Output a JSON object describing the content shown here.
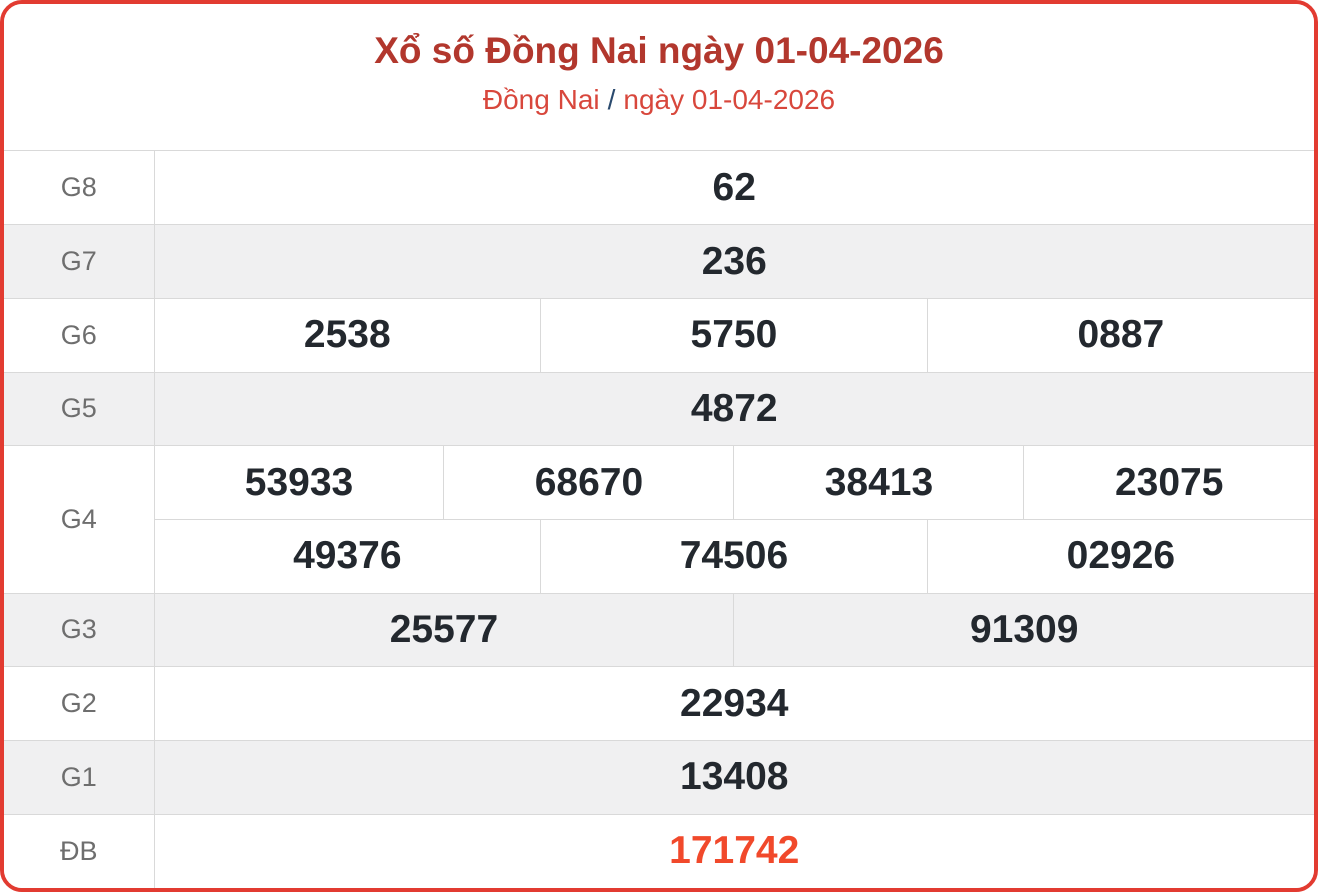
{
  "header": {
    "title": "Xổ số Đồng Nai ngày 01-04-2026",
    "region_link": "Đồng Nai",
    "separator": "/",
    "date_link": "ngày 01-04-2026"
  },
  "colors": {
    "card_border": "#e23b31",
    "title_text": "#b2372d",
    "subtitle_text": "#d8473c",
    "separator_text": "#2a4a6e",
    "number_text": "#23282e",
    "label_text": "#6e6e6e",
    "special_prize_text": "#f1492b",
    "alt_row_background": "#f0f0f1",
    "grid_line": "#d9d9d9"
  },
  "results": {
    "rows": [
      {
        "label": "G8",
        "values": [
          "62"
        ]
      },
      {
        "label": "G7",
        "values": [
          "236"
        ]
      },
      {
        "label": "G6",
        "values": [
          "2538",
          "5750",
          "0887"
        ]
      },
      {
        "label": "G5",
        "values": [
          "4872"
        ]
      },
      {
        "label": "G4",
        "values": [
          "53933",
          "68670",
          "38413",
          "23075",
          "49376",
          "74506",
          "02926"
        ]
      },
      {
        "label": "G3",
        "values": [
          "25577",
          "91309"
        ]
      },
      {
        "label": "G2",
        "values": [
          "22934"
        ]
      },
      {
        "label": "G1",
        "values": [
          "13408"
        ]
      },
      {
        "label": "ĐB",
        "values": [
          "171742"
        ]
      }
    ]
  }
}
